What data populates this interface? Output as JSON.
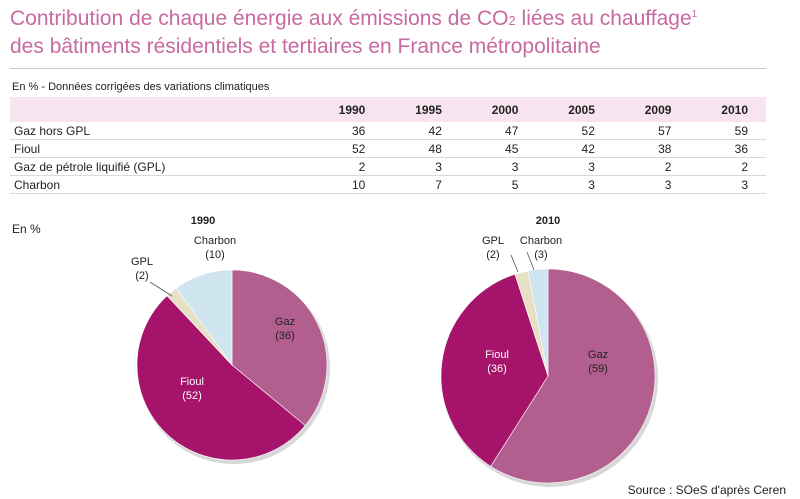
{
  "title": {
    "line1_prefix": "Contribution de chaque énergie aux émissions de CO",
    "line1_sub": "2",
    "line1_suffix": " liées au chauffage",
    "line1_sup": "1",
    "line2": "des bâtiments résidentiels et tertiaires en France métropolitaine"
  },
  "unit_note": "En % - Données corrigées des variations climatiques",
  "pie_unit": "En %",
  "source": "Source : SOeS d'après Ceren",
  "colors": {
    "gaz": "#b25e8e",
    "fioul": "#a5146a",
    "gpl": "#e8e0c4",
    "charbon": "#cfe5ef",
    "header_bg": "#f7e4ee",
    "title": "#c76aa0"
  },
  "chart_data": [
    {
      "type": "table",
      "columns": [
        "",
        "1990",
        "1995",
        "2000",
        "2005",
        "2009",
        "2010"
      ],
      "rows": [
        {
          "label": "Gaz hors GPL",
          "values": [
            "36",
            "42",
            "47",
            "52",
            "57",
            "59"
          ]
        },
        {
          "label": "Fioul",
          "values": [
            "52",
            "48",
            "45",
            "42",
            "38",
            "36"
          ]
        },
        {
          "label": "Gaz de pétrole liquifié (GPL)",
          "values": [
            "2",
            "3",
            "3",
            "3",
            "2",
            "2"
          ]
        },
        {
          "label": "Charbon",
          "values": [
            "10",
            "7",
            "5",
            "3",
            "3",
            "3"
          ]
        }
      ]
    },
    {
      "type": "pie",
      "title": "1990",
      "slices": [
        {
          "key": "gaz",
          "label": "Gaz",
          "value": 36,
          "value_text": "(36)"
        },
        {
          "key": "fioul",
          "label": "Fioul",
          "value": 52,
          "value_text": "(52)"
        },
        {
          "key": "gpl",
          "label": "GPL",
          "value": 2,
          "value_text": "(2)"
        },
        {
          "key": "charbon",
          "label": "Charbon",
          "value": 10,
          "value_text": "(10)"
        }
      ]
    },
    {
      "type": "pie",
      "title": "2010",
      "slices": [
        {
          "key": "gaz",
          "label": "Gaz",
          "value": 59,
          "value_text": "(59)"
        },
        {
          "key": "fioul",
          "label": "Fioul",
          "value": 36,
          "value_text": "(36)"
        },
        {
          "key": "gpl",
          "label": "GPL",
          "value": 2,
          "value_text": "(2)"
        },
        {
          "key": "charbon",
          "label": "Charbon",
          "value": 3,
          "value_text": "(3)"
        }
      ]
    }
  ]
}
